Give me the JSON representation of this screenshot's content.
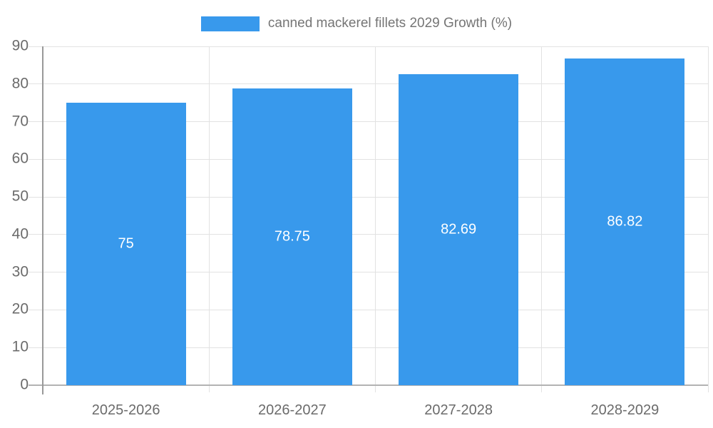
{
  "legend": {
    "label": "canned mackerel fillets 2029 Growth (%)"
  },
  "chart_data": {
    "type": "bar",
    "title": "canned mackerel fillets 2029 Growth (%)",
    "categories": [
      "2025-2026",
      "2026-2027",
      "2027-2028",
      "2028-2029"
    ],
    "values": [
      75,
      78.75,
      82.69,
      86.82
    ],
    "value_labels": [
      "75",
      "78.75",
      "82.69",
      "86.82"
    ],
    "xlabel": "",
    "ylabel": "",
    "ylim": [
      0,
      90
    ],
    "ytick_step": 10,
    "yticks": [
      "0",
      "10",
      "20",
      "30",
      "40",
      "50",
      "60",
      "70",
      "80",
      "90"
    ],
    "grid": true,
    "legend_position": "top-center",
    "bar_color": "#3899ec",
    "value_label_color": "#ffffff",
    "colors": {
      "grid": "#e2e2e2",
      "axis_line": "#999999",
      "baseline": "#b3b3b3",
      "tick_text": "#6b6b6b",
      "legend_text": "#757575"
    }
  }
}
